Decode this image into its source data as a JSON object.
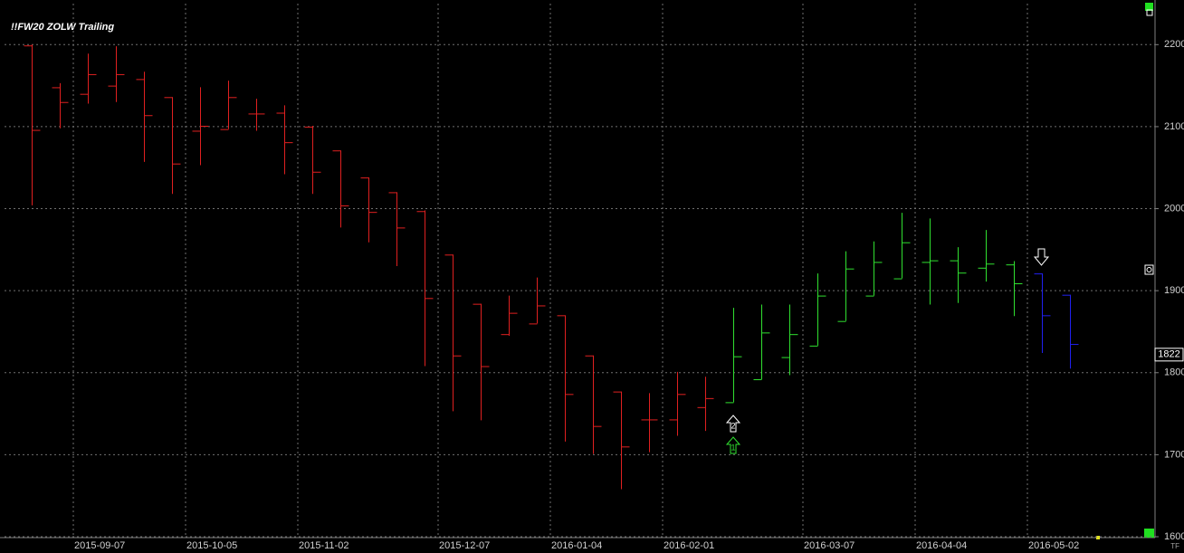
{
  "chart_data": {
    "type": "ohlc",
    "title": "!!FW20 ZOLW Trailing",
    "categories": [
      null,
      null,
      "2015-09-07",
      null,
      null,
      null,
      "2015-10-05",
      null,
      null,
      null,
      "2015-11-02",
      null,
      null,
      null,
      null,
      "2015-12-07",
      null,
      null,
      null,
      "2016-01-04",
      null,
      null,
      null,
      "2016-02-01",
      null,
      null,
      null,
      null,
      "2016-03-07",
      null,
      null,
      null,
      "2016-04-04",
      null,
      null,
      null,
      "2016-05-02",
      null
    ],
    "open": [
      2199,
      2148,
      2140,
      2150,
      2158,
      2136,
      2095,
      2097,
      2116,
      2117,
      2100,
      2071,
      2038,
      2020,
      1997,
      1944,
      1884,
      1847,
      1860,
      1870,
      1821,
      1777,
      1743,
      1743,
      1758,
      1764,
      1792,
      1819,
      1833,
      1863,
      1894,
      1915,
      1935,
      1937,
      1928,
      1932,
      1921,
      1895
    ],
    "high": [
      2200,
      2153,
      2189,
      2198,
      2167,
      2136,
      2148,
      2156,
      2134,
      2126,
      2101,
      2071,
      2038,
      2020,
      1998,
      1944,
      1884,
      1894,
      1916,
      1870,
      1821,
      1777,
      1775,
      1801,
      1795,
      1879,
      1883,
      1883,
      1921,
      1948,
      1960,
      1995,
      1988,
      1953,
      1974,
      1936,
      1921,
      1895
    ],
    "low": [
      2004,
      2098,
      2128,
      2130,
      2057,
      2018,
      2053,
      2097,
      2095,
      2042,
      2018,
      1977,
      1959,
      1930,
      1808,
      1753,
      1742,
      1845,
      1860,
      1716,
      1701,
      1658,
      1703,
      1723,
      1729,
      1764,
      1792,
      1797,
      1833,
      1863,
      1894,
      1915,
      1883,
      1885,
      1911,
      1869,
      1824,
      1805
    ],
    "close": [
      2096,
      2130,
      2164,
      2164,
      2114,
      2055,
      2101,
      2136,
      2116,
      2081,
      2045,
      2004,
      1996,
      1977,
      1891,
      1821,
      1808,
      1873,
      1882,
      1774,
      1735,
      1710,
      1743,
      1774,
      1769,
      1820,
      1849,
      1847,
      1894,
      1927,
      1935,
      1959,
      1937,
      1922,
      1933,
      1909,
      1870,
      1835
    ],
    "colors": [
      "#e02020",
      "#e02020",
      "#e02020",
      "#e02020",
      "#e02020",
      "#e02020",
      "#e02020",
      "#e02020",
      "#e02020",
      "#e02020",
      "#e02020",
      "#e02020",
      "#e02020",
      "#e02020",
      "#e02020",
      "#e02020",
      "#e02020",
      "#e02020",
      "#e02020",
      "#e02020",
      "#e02020",
      "#e02020",
      "#e02020",
      "#e02020",
      "#e02020",
      "#30e030",
      "#30e030",
      "#30e030",
      "#30e030",
      "#30e030",
      "#30e030",
      "#30e030",
      "#30e030",
      "#30e030",
      "#30e030",
      "#30e030",
      "#2020f0",
      "#2020f0"
    ],
    "ylim": [
      1600,
      2250
    ],
    "yticks": [
      1600,
      1700,
      1800,
      1900,
      2000,
      2100,
      2200
    ],
    "grid": true,
    "last_price": 1822,
    "annotations": [
      "2",
      "1"
    ],
    "corner_label": "TF"
  }
}
